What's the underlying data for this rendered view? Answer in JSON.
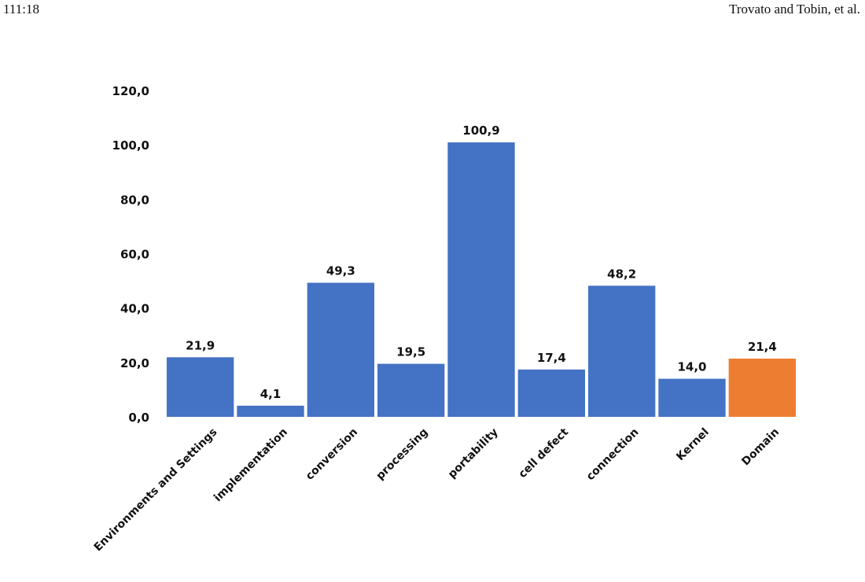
{
  "header": {
    "page_number": "111:18",
    "authors": "Trovato and Tobin, et al."
  },
  "chart_data": {
    "type": "bar",
    "categories": [
      "Environments and Settings",
      "implementation",
      "conversion",
      "processing",
      "portability",
      "cell defect",
      "connection",
      "Kernel",
      "Domain"
    ],
    "values": [
      21.9,
      4.1,
      49.3,
      19.5,
      100.9,
      17.4,
      48.2,
      14.0,
      21.4
    ],
    "value_labels": [
      "21,9",
      "4,1",
      "49,3",
      "19,5",
      "100,9",
      "17,4",
      "48,2",
      "14,0",
      "21,4"
    ],
    "yticks": [
      0,
      20,
      40,
      60,
      80,
      100,
      120
    ],
    "ytick_labels": [
      "0,0",
      "20,0",
      "40,0",
      "60,0",
      "80,0",
      "100,0",
      "120,0"
    ],
    "ylim": [
      0,
      120
    ],
    "grid": false,
    "colors": {
      "default": "#4472C4",
      "highlight": "#ED7D31"
    },
    "highlight_index": 8
  }
}
